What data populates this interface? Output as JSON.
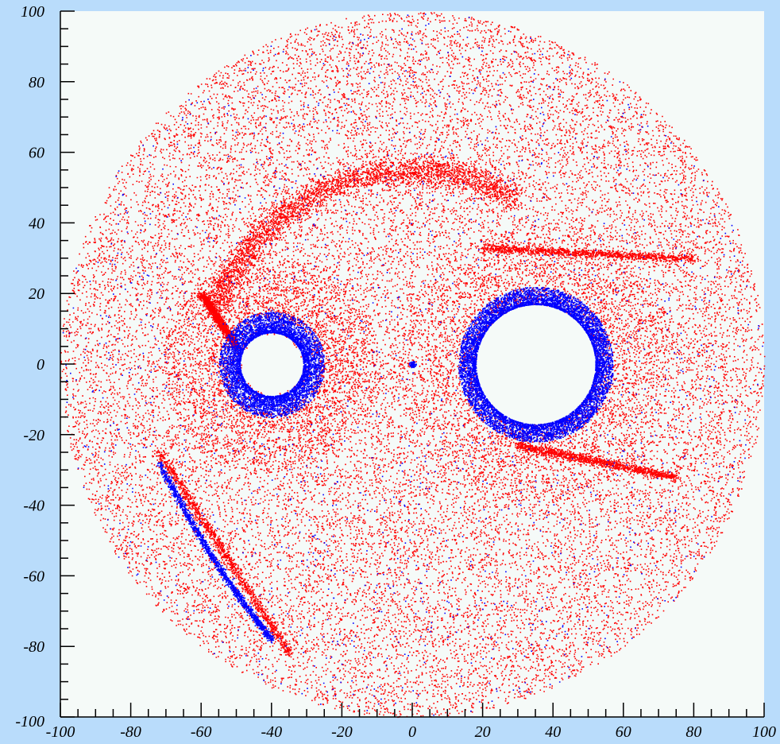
{
  "chart_data": {
    "type": "scatter",
    "title": "",
    "xlabel": "",
    "ylabel": "",
    "xlim": [
      -100,
      100
    ],
    "ylim": [
      -100,
      100
    ],
    "grid": false,
    "legend": "none",
    "x_ticks": [
      "-100",
      "-80",
      "-60",
      "-40",
      "-20",
      "0",
      "20",
      "40",
      "60",
      "80",
      "100"
    ],
    "y_ticks": [
      "-100",
      "-80",
      "-60",
      "-40",
      "-20",
      "0",
      "20",
      "40",
      "60",
      "80",
      "100"
    ],
    "colors": {
      "background": "#b9dcfb",
      "plot_area": "#f5faf8",
      "series_red": "#ff0000",
      "series_blue": "#0000ff"
    },
    "series": [
      {
        "color": "red",
        "description_points": {
          "disk": {
            "center": [
              0,
              0
            ],
            "radius": 100
          },
          "outer_arc_upper": {
            "center": [
              0,
              0
            ],
            "radius": 60,
            "from_deg": 60,
            "to_deg": 160
          },
          "streams": [
            {
              "from": [
                20,
                33
              ],
              "to": [
                80,
                30
              ]
            },
            {
              "from": [
                30,
                -23
              ],
              "to": [
                75,
                -32
              ]
            },
            {
              "from": [
                -60,
                20
              ],
              "to": [
                -50,
                5
              ]
            },
            {
              "from": [
                -72,
                -25
              ],
              "to": [
                -35,
                -82
              ]
            }
          ]
        }
      },
      {
        "color": "blue",
        "description_points": {
          "ring_left": {
            "center": [
              -40,
              0
            ],
            "radius_inner": 9,
            "radius_outer": 15
          },
          "ring_right": {
            "center": [
              35,
              0
            ],
            "radius_inner": 17,
            "radius_outer": 22
          },
          "central_dot": {
            "center": [
              0,
              0
            ],
            "radius": 1
          },
          "arc_lower_left": {
            "from": [
              -72,
              -28
            ],
            "to": [
              -40,
              -78
            ]
          }
        }
      }
    ],
    "holes": [
      {
        "center": [
          -40,
          0
        ],
        "radius": 8.5
      },
      {
        "center": [
          35,
          0
        ],
        "radius": 17
      }
    ]
  }
}
